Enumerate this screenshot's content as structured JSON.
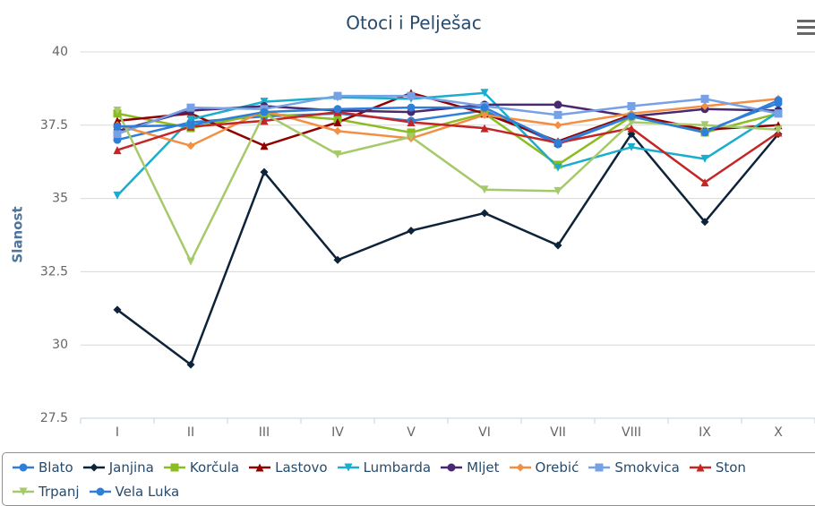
{
  "chart_data": {
    "type": "line",
    "title": "Otoci i Pelješac",
    "y_label": "Slanost",
    "categories": [
      "I",
      "II",
      "III",
      "IV",
      "V",
      "VI",
      "VII",
      "VIII",
      "IX",
      "X"
    ],
    "ylim": [
      27.5,
      40
    ],
    "yticks": [
      27.5,
      30,
      32.5,
      35,
      37.5,
      40
    ],
    "grid": true,
    "legend": "bottom",
    "series": [
      {
        "name": "Blato",
        "color": "#2f7ed8",
        "marker": "circle",
        "values": [
          37.0,
          37.6,
          37.8,
          37.9,
          37.65,
          38.0,
          36.85,
          37.8,
          37.3,
          38.25
        ]
      },
      {
        "name": "Janjina",
        "color": "#0d233a",
        "marker": "diamond",
        "values": [
          31.2,
          29.33,
          35.9,
          32.9,
          33.9,
          34.5,
          33.4,
          37.2,
          34.2,
          37.2
        ]
      },
      {
        "name": "Korčula",
        "color": "#8bbc21",
        "marker": "square",
        "values": [
          37.9,
          37.4,
          37.9,
          37.7,
          37.25,
          37.9,
          36.15,
          37.8,
          37.25,
          37.9
        ]
      },
      {
        "name": "Lastovo",
        "color": "#910000",
        "marker": "triangle",
        "values": [
          37.65,
          37.9,
          36.8,
          37.6,
          38.6,
          37.9,
          36.95,
          37.85,
          37.35,
          37.5
        ]
      },
      {
        "name": "Lumbarda",
        "color": "#1aadce",
        "marker": "triangle-down",
        "values": [
          35.1,
          37.7,
          38.3,
          38.45,
          38.4,
          38.6,
          36.05,
          36.75,
          36.35,
          37.95
        ]
      },
      {
        "name": "Mljet",
        "color": "#492970",
        "marker": "circle",
        "values": [
          37.3,
          38.0,
          38.15,
          38.0,
          37.95,
          38.2,
          38.2,
          37.8,
          38.05,
          38.0
        ]
      },
      {
        "name": "Orebić",
        "color": "#f28f43",
        "marker": "diamond",
        "values": [
          37.5,
          36.8,
          38.0,
          37.3,
          37.05,
          37.85,
          37.5,
          37.9,
          38.15,
          38.4
        ]
      },
      {
        "name": "Smokvica",
        "color": "#77a1e5",
        "marker": "square",
        "values": [
          37.2,
          38.1,
          38.05,
          38.5,
          38.5,
          38.15,
          37.85,
          38.15,
          38.4,
          37.9
        ]
      },
      {
        "name": "Ston",
        "color": "#c42525",
        "marker": "triangle",
        "values": [
          36.65,
          37.45,
          37.65,
          37.95,
          37.6,
          37.4,
          36.9,
          37.4,
          35.55,
          37.25
        ]
      },
      {
        "name": "Trpanj",
        "color": "#a6c96a",
        "marker": "triangle-down",
        "values": [
          38.0,
          32.85,
          37.9,
          36.5,
          37.1,
          35.3,
          35.25,
          37.6,
          37.5,
          37.35
        ]
      },
      {
        "name": "Vela Luka",
        "color": "#2f7ed8",
        "marker": "circle",
        "values": [
          37.45,
          37.5,
          37.95,
          38.05,
          38.1,
          38.1,
          36.9,
          37.8,
          37.25,
          38.35
        ]
      }
    ]
  }
}
